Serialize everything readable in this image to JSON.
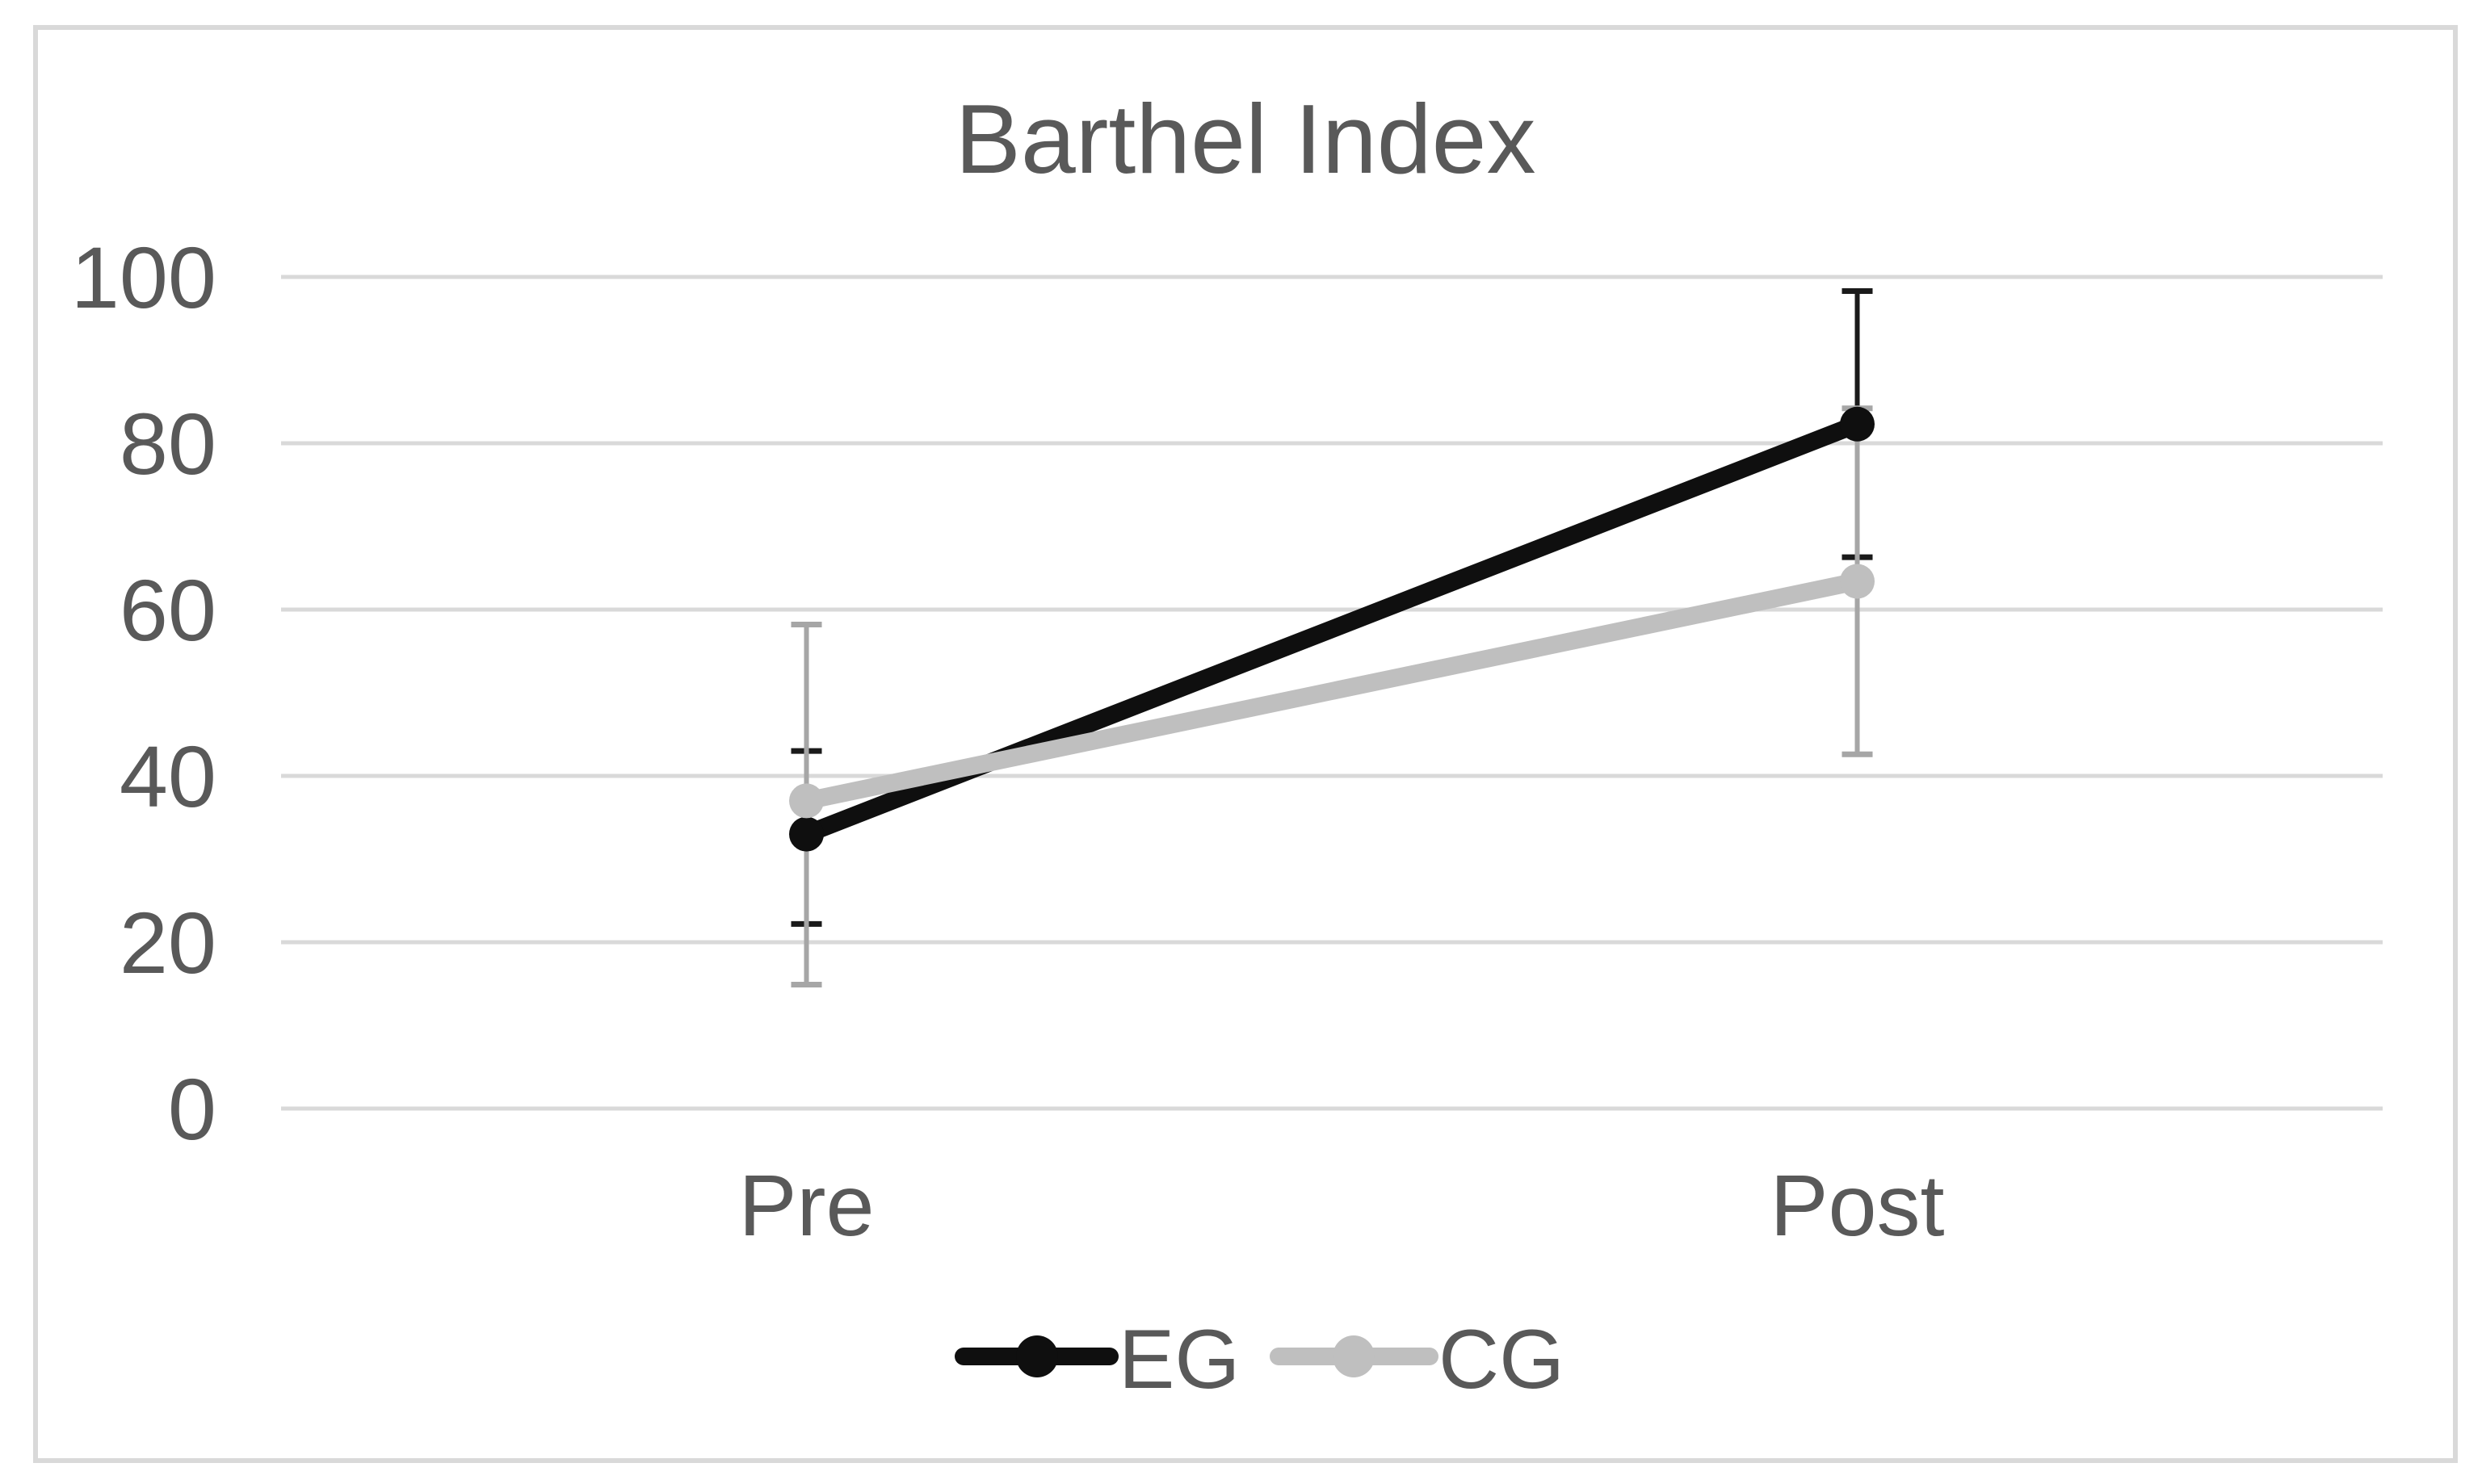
{
  "chart_data": {
    "type": "line",
    "title": "Barthel Index",
    "categories": [
      "Pre",
      "Post"
    ],
    "y_axis": {
      "min": 0,
      "max": 100,
      "step": 20,
      "ticks": [
        100,
        80,
        60,
        40,
        20,
        0
      ]
    },
    "grid": "horizontal",
    "legend_position": "bottom",
    "series": [
      {
        "name": "EG",
        "color": "#0f0f0f",
        "error_color": "#1a1a1a",
        "values": [
          33,
          82.3
        ],
        "error_bars": [
          {
            "lo": 22.2,
            "hi": 43.0
          },
          {
            "lo": 66.3,
            "hi": 98.3
          }
        ]
      },
      {
        "name": "CG",
        "color": "#bfbfbf",
        "error_color": "#a6a6a6",
        "values": [
          37,
          63.4
        ],
        "error_bars": [
          {
            "lo": 14.9,
            "hi": 58.2
          },
          {
            "lo": 42.6,
            "hi": 84.2
          }
        ]
      }
    ],
    "colors": {
      "text": "#595959",
      "gridline": "#d9d9d9",
      "frame_border": "#d9d9d9",
      "background": "#ffffff"
    }
  }
}
